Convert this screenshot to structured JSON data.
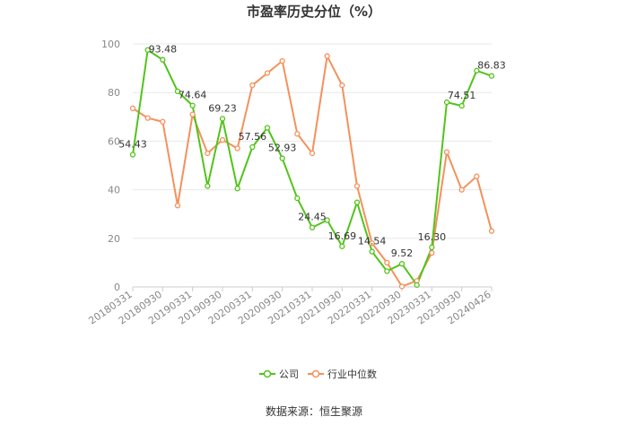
{
  "chart_data": {
    "type": "line",
    "title": "市盈率历史分位（%）",
    "source": "数据来源：恒生聚源",
    "ylim": [
      0,
      100
    ],
    "yticks": [
      "0",
      "20",
      "40",
      "60",
      "80",
      "100"
    ],
    "xtick_labels": [
      "20180331",
      "20180930",
      "20190331",
      "20190930",
      "20200331",
      "20200930",
      "20210331",
      "20210930",
      "20220331",
      "20220930",
      "20230331",
      "20230930",
      "20240426"
    ],
    "grid": true,
    "legend_position": "bottom",
    "colors": {
      "company": "#52c41a",
      "industry": "#f4915c"
    },
    "series": [
      {
        "name": "公司",
        "values": [
          54.43,
          97.5,
          93.48,
          80.5,
          74.64,
          41.5,
          69.23,
          40.5,
          57.56,
          65.5,
          52.93,
          36.5,
          24.45,
          27.5,
          16.69,
          34.8,
          14.54,
          6.5,
          9.52,
          0.8,
          16.3,
          76.0,
          74.51,
          89.0,
          86.83
        ]
      },
      {
        "name": "行业中位数",
        "values": [
          73.5,
          69.5,
          68.0,
          33.5,
          71.0,
          55.0,
          60.5,
          57.0,
          83.0,
          88.0,
          93.0,
          63.0,
          55.0,
          95.0,
          83.0,
          41.5,
          18.0,
          10.0,
          0.2,
          2.5,
          14.0,
          55.5,
          40.0,
          45.5,
          23.0
        ]
      }
    ],
    "data_labels": [
      {
        "index": 0,
        "text": "54.43"
      },
      {
        "index": 2,
        "text": "93.48"
      },
      {
        "index": 4,
        "text": "74.64"
      },
      {
        "index": 6,
        "text": "69.23"
      },
      {
        "index": 8,
        "text": "57.56"
      },
      {
        "index": 10,
        "text": "52.93"
      },
      {
        "index": 12,
        "text": "24.45"
      },
      {
        "index": 14,
        "text": "16.69"
      },
      {
        "index": 16,
        "text": "14.54"
      },
      {
        "index": 18,
        "text": "9.52"
      },
      {
        "index": 20,
        "text": "16.30"
      },
      {
        "index": 22,
        "text": "74.51"
      },
      {
        "index": 24,
        "text": "86.83"
      }
    ]
  }
}
